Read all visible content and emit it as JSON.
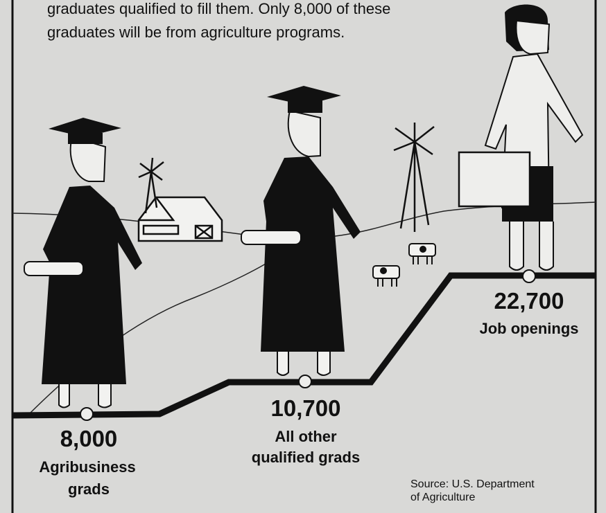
{
  "intro": {
    "lines": [
      "graduates qualified to fill them.  Only 8,000 of these",
      "graduates will be from agriculture programs."
    ]
  },
  "steps": [
    {
      "value": "8,000",
      "label_lines": [
        "Agribusiness",
        "grads"
      ]
    },
    {
      "value": "10,700",
      "label_lines": [
        "All other",
        "qualified grads"
      ]
    },
    {
      "value": "22,700",
      "label_lines": [
        "Job openings"
      ]
    }
  ],
  "source": {
    "lines": [
      "Source:  U.S. Department",
      "of Agriculture"
    ]
  }
}
